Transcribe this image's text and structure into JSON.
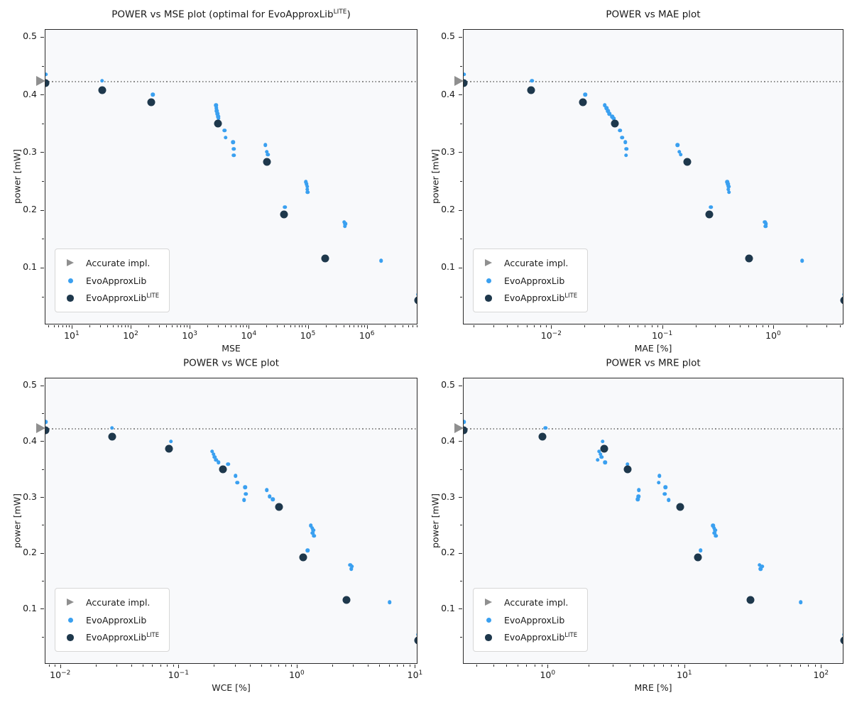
{
  "ylabel": "power [mW]",
  "accurate_power": 0.4235,
  "colors": {
    "evo": "#3aa0f0",
    "evo_lite": "#1e384c",
    "accurate": "#8f8f8f",
    "axes_bg": "#f8f9fb",
    "hline": "#8a8a8a",
    "spine": "#2a2a2a",
    "text": "#1a1a1a",
    "legend_bg": "#ffffff",
    "legend_border": "#d7d7d7"
  },
  "legend": {
    "items": [
      {
        "label": "Accurate impl.",
        "sup": "",
        "marker": "accurate-triangle"
      },
      {
        "label": "EvoApproxLib",
        "sup": "",
        "marker": "evo-dot"
      },
      {
        "label": "EvoApproxLib",
        "sup": "LITE",
        "marker": "evolite-dot"
      }
    ]
  },
  "chart_data": [
    {
      "type": "scatter",
      "title": {
        "text": "POWER vs MSE plot (optimal for EvoApproxLib",
        "sup": "LITE",
        "post": ")"
      },
      "xlabel": "MSE",
      "xscale": "log",
      "xlim": [
        3.5,
        7200000
      ],
      "xtick_exponents": [
        1,
        2,
        3,
        4,
        5,
        6
      ],
      "ylim": [
        0.0015,
        0.5135
      ],
      "yticks": [
        0.1,
        0.2,
        0.3,
        0.4,
        0.5
      ],
      "y_minor_ticks": [
        0.05,
        0.15,
        0.25,
        0.35,
        0.45
      ],
      "hline": 0.4235,
      "accurate_point": {
        "x": 3.5,
        "y": 0.4235
      },
      "series": {
        "evo": [
          [
            3.5,
            0.436
          ],
          [
            32,
            0.425
          ],
          [
            230,
            0.401
          ],
          [
            2700,
            0.383
          ],
          [
            2750,
            0.378
          ],
          [
            2800,
            0.373
          ],
          [
            2850,
            0.368
          ],
          [
            2950,
            0.363
          ],
          [
            3000,
            0.36
          ],
          [
            3800,
            0.339
          ],
          [
            3950,
            0.327
          ],
          [
            5300,
            0.319
          ],
          [
            5400,
            0.307
          ],
          [
            5450,
            0.296
          ],
          [
            18500,
            0.314
          ],
          [
            19500,
            0.302
          ],
          [
            20500,
            0.297
          ],
          [
            90000,
            0.25
          ],
          [
            93000,
            0.246
          ],
          [
            95000,
            0.242
          ],
          [
            95500,
            0.237
          ],
          [
            97000,
            0.232
          ],
          [
            40000,
            0.206
          ],
          [
            400000,
            0.18
          ],
          [
            420000,
            0.177
          ],
          [
            415000,
            0.173
          ],
          [
            1700000,
            0.113
          ],
          [
            7200000,
            0.055
          ]
        ],
        "evo_lite": [
          [
            3.5,
            0.421
          ],
          [
            32,
            0.409
          ],
          [
            215,
            0.388
          ],
          [
            2900,
            0.351
          ],
          [
            20000,
            0.284
          ],
          [
            38000,
            0.193
          ],
          [
            190000,
            0.117
          ],
          [
            7200000,
            0.045
          ]
        ]
      }
    },
    {
      "type": "scatter",
      "title": {
        "text": "POWER vs MAE plot",
        "sup": "",
        "post": ""
      },
      "xlabel": "MAE [%]",
      "xscale": "log",
      "xlim": [
        0.0016,
        4.3
      ],
      "xtick_exponents": [
        -2,
        -1,
        0
      ],
      "ylim": [
        0.0015,
        0.5135
      ],
      "yticks": [
        0.1,
        0.2,
        0.3,
        0.4,
        0.5
      ],
      "y_minor_ticks": [
        0.05,
        0.15,
        0.25,
        0.35,
        0.45
      ],
      "hline": 0.4235,
      "accurate_point": {
        "x": 0.0016,
        "y": 0.4235
      },
      "series": {
        "evo": [
          [
            0.0016,
            0.436
          ],
          [
            0.0066,
            0.425
          ],
          [
            0.02,
            0.401
          ],
          [
            0.03,
            0.383
          ],
          [
            0.031,
            0.378
          ],
          [
            0.032,
            0.373
          ],
          [
            0.033,
            0.368
          ],
          [
            0.035,
            0.363
          ],
          [
            0.036,
            0.36
          ],
          [
            0.041,
            0.339
          ],
          [
            0.043,
            0.327
          ],
          [
            0.046,
            0.319
          ],
          [
            0.047,
            0.307
          ],
          [
            0.0465,
            0.296
          ],
          [
            0.135,
            0.314
          ],
          [
            0.14,
            0.302
          ],
          [
            0.145,
            0.297
          ],
          [
            0.38,
            0.25
          ],
          [
            0.385,
            0.246
          ],
          [
            0.39,
            0.242
          ],
          [
            0.388,
            0.237
          ],
          [
            0.395,
            0.232
          ],
          [
            0.27,
            0.206
          ],
          [
            0.83,
            0.18
          ],
          [
            0.85,
            0.177
          ],
          [
            0.84,
            0.173
          ],
          [
            1.8,
            0.113
          ],
          [
            4.3,
            0.055
          ]
        ],
        "evo_lite": [
          [
            0.0016,
            0.421
          ],
          [
            0.0065,
            0.409
          ],
          [
            0.019,
            0.388
          ],
          [
            0.037,
            0.351
          ],
          [
            0.165,
            0.284
          ],
          [
            0.26,
            0.193
          ],
          [
            0.6,
            0.117
          ],
          [
            4.3,
            0.045
          ]
        ]
      }
    },
    {
      "type": "scatter",
      "title": {
        "text": "POWER vs WCE plot",
        "sup": "",
        "post": ""
      },
      "xlabel": "WCE [%]",
      "xscale": "log",
      "xlim": [
        0.0074,
        10.5
      ],
      "xtick_exponents": [
        -2,
        -1,
        0,
        1
      ],
      "ylim": [
        0.0015,
        0.5135
      ],
      "yticks": [
        0.1,
        0.2,
        0.3,
        0.4,
        0.5
      ],
      "y_minor_ticks": [
        0.05,
        0.15,
        0.25,
        0.35,
        0.45
      ],
      "hline": 0.4235,
      "accurate_point": {
        "x": 0.0074,
        "y": 0.4235
      },
      "series": {
        "evo": [
          [
            0.0074,
            0.436
          ],
          [
            0.027,
            0.425
          ],
          [
            0.085,
            0.401
          ],
          [
            0.19,
            0.383
          ],
          [
            0.195,
            0.378
          ],
          [
            0.2,
            0.373
          ],
          [
            0.205,
            0.368
          ],
          [
            0.215,
            0.363
          ],
          [
            0.26,
            0.36
          ],
          [
            0.3,
            0.339
          ],
          [
            0.31,
            0.327
          ],
          [
            0.36,
            0.319
          ],
          [
            0.365,
            0.307
          ],
          [
            0.355,
            0.296
          ],
          [
            0.55,
            0.314
          ],
          [
            0.58,
            0.302
          ],
          [
            0.62,
            0.297
          ],
          [
            1.3,
            0.25
          ],
          [
            1.33,
            0.246
          ],
          [
            1.36,
            0.242
          ],
          [
            1.34,
            0.237
          ],
          [
            1.38,
            0.232
          ],
          [
            1.22,
            0.206
          ],
          [
            2.8,
            0.18
          ],
          [
            2.9,
            0.177
          ],
          [
            2.85,
            0.173
          ],
          [
            6.0,
            0.113
          ],
          [
            10.5,
            0.055
          ]
        ],
        "evo_lite": [
          [
            0.0074,
            0.421
          ],
          [
            0.027,
            0.409
          ],
          [
            0.082,
            0.388
          ],
          [
            0.235,
            0.351
          ],
          [
            0.7,
            0.284
          ],
          [
            1.12,
            0.193
          ],
          [
            2.6,
            0.117
          ],
          [
            10.5,
            0.045
          ]
        ]
      }
    },
    {
      "type": "scatter",
      "title": {
        "text": "POWER vs MRE plot",
        "sup": "",
        "post": ""
      },
      "xlabel": "MRE [%]",
      "xscale": "log",
      "xlim": [
        0.24,
        146
      ],
      "xtick_exponents": [
        0,
        1,
        2
      ],
      "ylim": [
        0.0015,
        0.5135
      ],
      "yticks": [
        0.1,
        0.2,
        0.3,
        0.4,
        0.5
      ],
      "y_minor_ticks": [
        0.05,
        0.15,
        0.25,
        0.35,
        0.45
      ],
      "hline": 0.4235,
      "accurate_point": {
        "x": 0.24,
        "y": 0.4235
      },
      "series": {
        "evo": [
          [
            0.24,
            0.436
          ],
          [
            0.95,
            0.425
          ],
          [
            2.5,
            0.401
          ],
          [
            2.35,
            0.383
          ],
          [
            2.4,
            0.378
          ],
          [
            2.45,
            0.373
          ],
          [
            2.3,
            0.368
          ],
          [
            2.6,
            0.363
          ],
          [
            3.8,
            0.36
          ],
          [
            6.5,
            0.339
          ],
          [
            6.4,
            0.327
          ],
          [
            7.2,
            0.319
          ],
          [
            7.1,
            0.307
          ],
          [
            7.6,
            0.296
          ],
          [
            4.6,
            0.314
          ],
          [
            4.55,
            0.302
          ],
          [
            4.5,
            0.297
          ],
          [
            16.0,
            0.25
          ],
          [
            16.3,
            0.246
          ],
          [
            16.6,
            0.242
          ],
          [
            16.4,
            0.237
          ],
          [
            16.8,
            0.232
          ],
          [
            13.0,
            0.206
          ],
          [
            35,
            0.18
          ],
          [
            36.5,
            0.177
          ],
          [
            35.8,
            0.173
          ],
          [
            70,
            0.113
          ],
          [
            146,
            0.055
          ]
        ],
        "evo_lite": [
          [
            0.24,
            0.421
          ],
          [
            0.9,
            0.409
          ],
          [
            2.55,
            0.388
          ],
          [
            3.8,
            0.351
          ],
          [
            9.2,
            0.284
          ],
          [
            12.5,
            0.193
          ],
          [
            30,
            0.117
          ],
          [
            146,
            0.045
          ]
        ]
      }
    }
  ]
}
